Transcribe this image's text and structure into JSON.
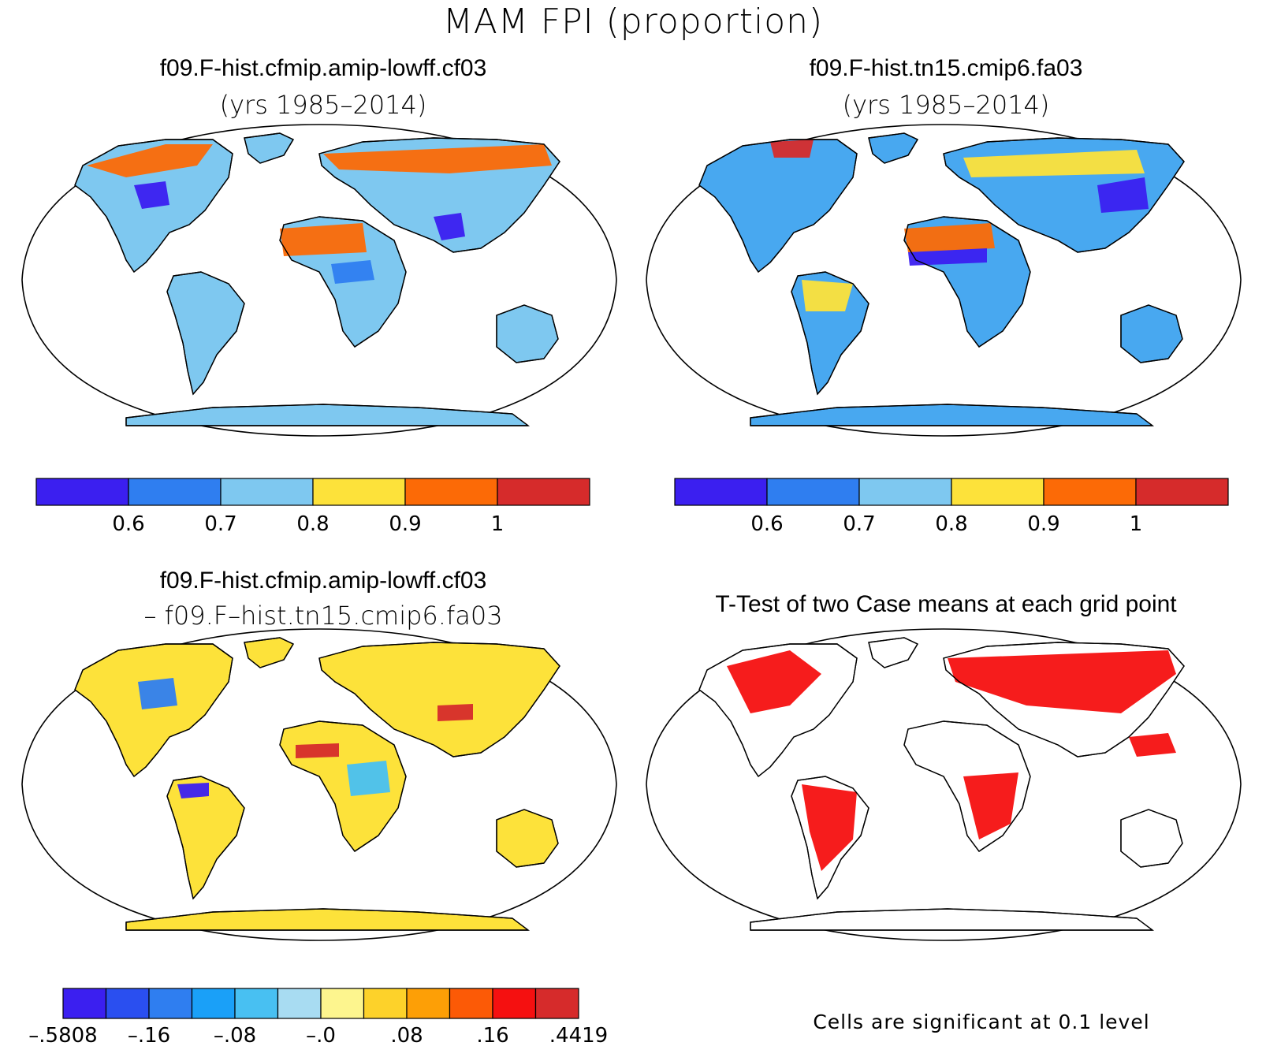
{
  "figure": {
    "title": "MAM FPI (proportion)"
  },
  "panels": [
    {
      "title": "f09.F-hist.cfmip.amip-lowff.cf03",
      "subtitle": "(yrs 1985–2014)"
    },
    {
      "title": "f09.F-hist.tn15.cmip6.fa03",
      "subtitle": "(yrs 1985–2014)"
    },
    {
      "title": "f09.F-hist.cfmip.amip-lowff.cf03",
      "subtitle": "– f09.F–hist.tn15.cmip6.fa03"
    },
    {
      "title": "T-Test of two Case means at each grid point",
      "note": "Cells are significant at 0.1 level"
    }
  ],
  "colorbars": {
    "mean": {
      "colors": [
        "#3b1ff0",
        "#2f7ef0",
        "#7ec8f0",
        "#fde23a",
        "#fc6a06",
        "#d62b2b"
      ],
      "labels": [
        "0.6",
        "0.7",
        "0.8",
        "0.9",
        "1"
      ]
    },
    "diff": {
      "colors": [
        "#3b1ff0",
        "#2a4ff0",
        "#2f7ef0",
        "#1aa0f8",
        "#48c0f2",
        "#a8dcf2",
        "#fdf58e",
        "#fdd22a",
        "#fd9f06",
        "#fc5a06",
        "#f51010",
        "#d62b2b"
      ],
      "labels": [
        "–.5808",
        "–.16",
        "–.08",
        "–.0",
        ".08",
        ".16",
        ".4419"
      ]
    }
  },
  "map_fill": {
    "land_mean1": "#7ec8f0",
    "land_mean2": "#48a8f0",
    "land_diff": "#fde23a",
    "land_sig": "#f51010"
  }
}
